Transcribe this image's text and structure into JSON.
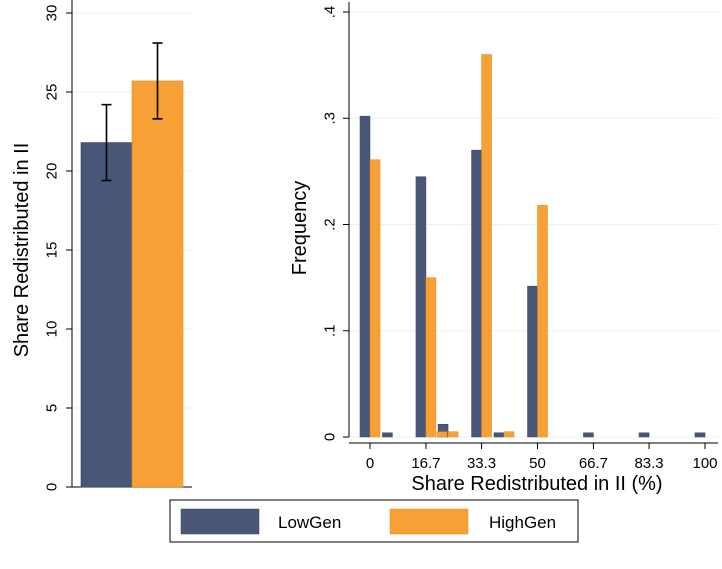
{
  "chart_data": [
    {
      "type": "bar",
      "ylabel": "Share Redistributed in II",
      "ylim": [
        0,
        30
      ],
      "yticks": [
        "0",
        "5",
        "10",
        "15",
        "20",
        "25",
        "30"
      ],
      "grid": true,
      "error_bars": true,
      "series": [
        {
          "name": "LowGen",
          "value": 21.8,
          "ci": [
            19.4,
            24.2
          ]
        },
        {
          "name": "HighGen",
          "value": 25.7,
          "ci": [
            23.3,
            28.1
          ]
        }
      ]
    },
    {
      "type": "bar",
      "xlabel": "Share Redistributed in II (%)",
      "ylabel": "Frequency",
      "ylim": [
        0,
        0.4
      ],
      "yticks": [
        "0",
        ".1",
        ".2",
        ".3",
        ".4"
      ],
      "xlim": [
        -2,
        102
      ],
      "xticks": [
        {
          "value": 0,
          "label": "0"
        },
        {
          "value": 16.7,
          "label": "16.7"
        },
        {
          "value": 33.3,
          "label": "33.3"
        },
        {
          "value": 50,
          "label": "50"
        },
        {
          "value": 66.7,
          "label": "66.7"
        },
        {
          "value": 83.3,
          "label": "83.3"
        },
        {
          "value": 100,
          "label": "100"
        }
      ],
      "grid": true,
      "series": [
        {
          "name": "LowGen",
          "points": [
            [
              0,
              0.302
            ],
            [
              6.7,
              0.004
            ],
            [
              16.7,
              0.245
            ],
            [
              23.3,
              0.012
            ],
            [
              33.3,
              0.27
            ],
            [
              40,
              0.004
            ],
            [
              50,
              0.142
            ],
            [
              66.7,
              0.004
            ],
            [
              83.3,
              0.004
            ],
            [
              100,
              0.004
            ]
          ]
        },
        {
          "name": "HighGen",
          "points": [
            [
              0,
              0.261
            ],
            [
              16.7,
              0.15
            ],
            [
              20,
              0.005
            ],
            [
              23.3,
              0.005
            ],
            [
              33.3,
              0.36
            ],
            [
              40,
              0.005
            ],
            [
              50,
              0.218
            ]
          ]
        }
      ]
    }
  ],
  "legend": {
    "placement": "bottom",
    "items": [
      {
        "label": "LowGen",
        "color": "#4a5678"
      },
      {
        "label": "HighGen",
        "color": "#f7a035"
      }
    ]
  },
  "colors": {
    "lowgen": "#4a5678",
    "highgen": "#f7a035",
    "grid": "#eaf1f5"
  }
}
